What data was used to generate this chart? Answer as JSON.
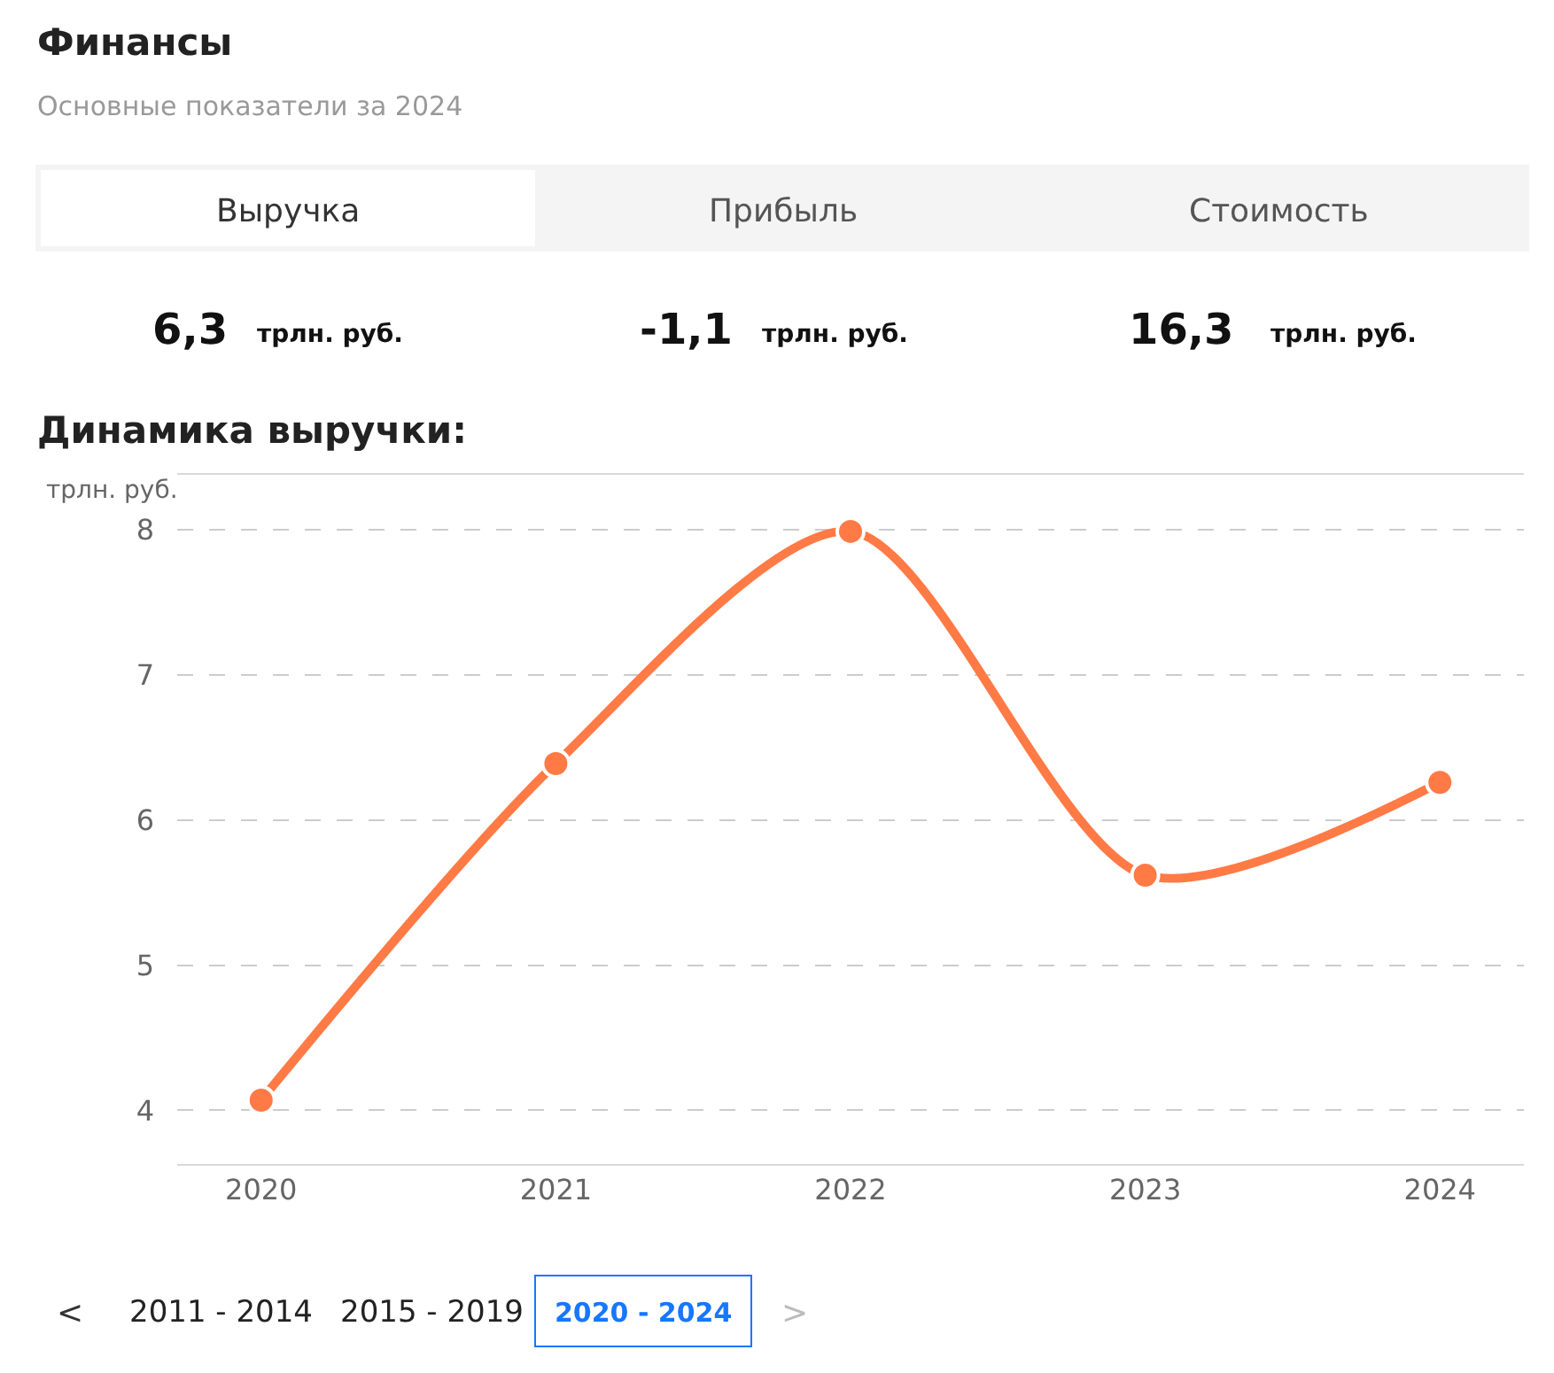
{
  "chart_data": {
    "type": "line",
    "title": "Финансы",
    "subtitle": "Основные показатели за 2024",
    "ylabel": "трлн. руб.",
    "categories": [
      "2020",
      "2021",
      "2022",
      "2023",
      "2024"
    ],
    "series": [
      {
        "color": "#ff7a45",
        "values": [
          4.07,
          6.39,
          7.99,
          5.62,
          6.26
        ]
      }
    ],
    "ylim": [
      3.63,
      8.38
    ],
    "yticks": [
      4,
      5,
      6,
      7,
      8
    ],
    "grid": "y",
    "marker": "circle",
    "line_style": "solid",
    "annotations": [
      "Выручка",
      "Прибыль",
      "Стоимость",
      "6,3",
      "трлн. руб.",
      "-1,1",
      "трлн. руб.",
      "16,3",
      "трлн. руб.",
      "Динамика выручки:",
      "<",
      "2011 - 2014",
      "2015 - 2019",
      "2020 - 2024",
      ">"
    ]
  }
}
